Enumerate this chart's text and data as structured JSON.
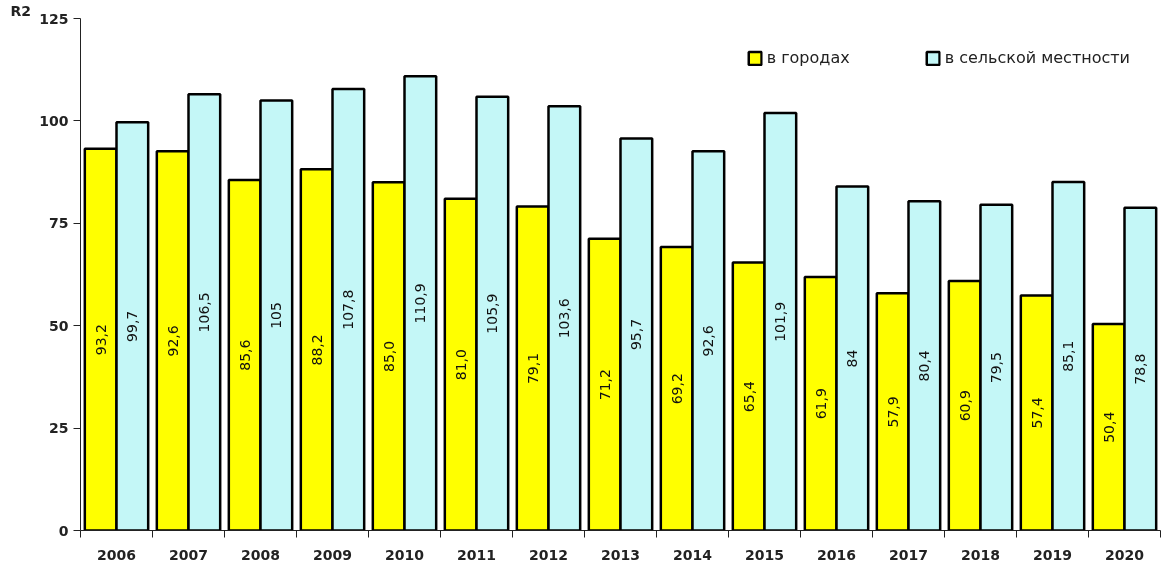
{
  "chart_data": {
    "type": "bar",
    "ylabel": "R2",
    "categories": [
      "2006",
      "2007",
      "2008",
      "2009",
      "2010",
      "2011",
      "2012",
      "2013",
      "2014",
      "2015",
      "2016",
      "2017",
      "2018",
      "2019",
      "2020"
    ],
    "series": [
      {
        "name": "в городах",
        "color": "#ffff00",
        "values": [
          93.2,
          92.6,
          85.6,
          88.2,
          85.0,
          81.0,
          79.1,
          71.2,
          69.2,
          65.4,
          61.9,
          57.9,
          60.9,
          57.4,
          50.4
        ],
        "value_labels": [
          "93,2",
          "92,6",
          "85,6",
          "88,2",
          "85,0",
          "81,0",
          "79,1",
          "71,2",
          "69,2",
          "65,4",
          "61,9",
          "57,9",
          "60,9",
          "57,4",
          "50,4"
        ]
      },
      {
        "name": "в сельской местности",
        "color": "#c4f7f7",
        "values": [
          99.7,
          106.5,
          105,
          107.8,
          110.9,
          105.9,
          103.6,
          95.7,
          92.6,
          101.9,
          84,
          80.4,
          79.5,
          85.1,
          78.8
        ],
        "value_labels": [
          "99,7",
          "106,5",
          "105",
          "107,8",
          "110,9",
          "105,9",
          "103,6",
          "95,7",
          "92,6",
          "101,9",
          "84",
          "80,4",
          "79,5",
          "85,1",
          "78,8"
        ]
      }
    ],
    "ylim": [
      0,
      125
    ],
    "yticks": [
      0,
      25,
      50,
      75,
      100,
      125
    ],
    "grid": false,
    "legend": "top right"
  }
}
